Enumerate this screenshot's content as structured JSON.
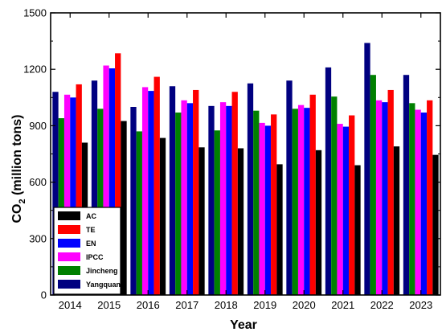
{
  "chart_data": {
    "type": "bar",
    "xlabel": "Year",
    "ylabel": "CO",
    "ylabel_sub": "2",
    "ylabel_rest": " (million tons)",
    "ylim": [
      0,
      1500
    ],
    "yticks": [
      0,
      300,
      600,
      900,
      1200,
      1500
    ],
    "grid": false,
    "legend_position": "bottom-left",
    "categories": [
      "2014",
      "2015",
      "2016",
      "2017",
      "2018",
      "2019",
      "2020",
      "2021",
      "2022",
      "2023"
    ],
    "series": [
      {
        "name": "Yangquan",
        "color": "#000080",
        "values": [
          1080,
          1140,
          1000,
          1110,
          1005,
          1125,
          1140,
          1210,
          1340,
          1170
        ]
      },
      {
        "name": "Jincheng",
        "color": "#008000",
        "values": [
          940,
          990,
          870,
          970,
          875,
          980,
          990,
          1055,
          1170,
          1020
        ]
      },
      {
        "name": "IPCC",
        "color": "#ff00ff",
        "values": [
          1065,
          1220,
          1105,
          1035,
          1025,
          915,
          1010,
          910,
          1035,
          985
        ]
      },
      {
        "name": "EN",
        "color": "#0000ff",
        "values": [
          1050,
          1205,
          1085,
          1020,
          1005,
          900,
          995,
          895,
          1025,
          970
        ]
      },
      {
        "name": "TE",
        "color": "#ff0000",
        "values": [
          1120,
          1285,
          1160,
          1090,
          1080,
          960,
          1065,
          955,
          1090,
          1035
        ]
      },
      {
        "name": "AC",
        "color": "#000000",
        "values": [
          810,
          925,
          835,
          785,
          780,
          695,
          770,
          690,
          790,
          745
        ]
      }
    ],
    "legend_order": [
      "AC",
      "TE",
      "EN",
      "IPCC",
      "Jincheng",
      "Yangquan"
    ]
  }
}
